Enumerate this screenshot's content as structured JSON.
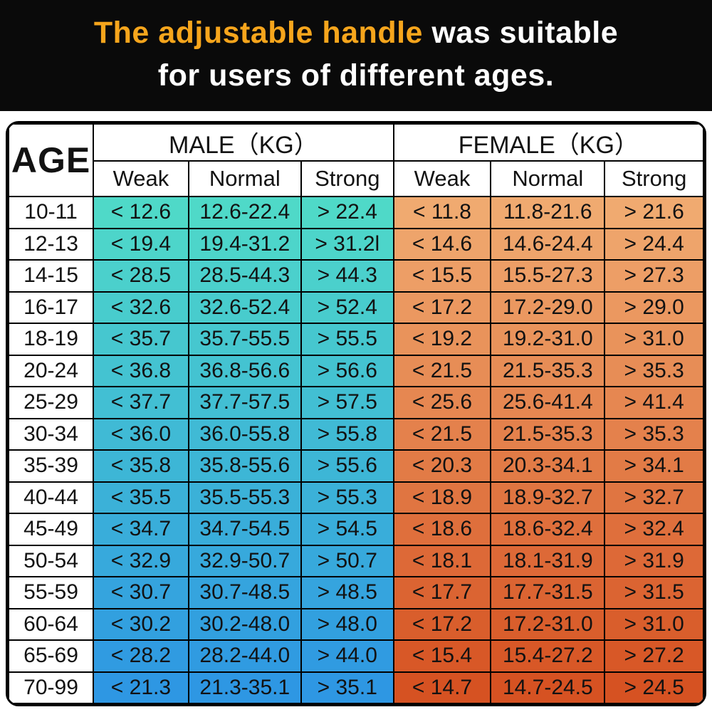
{
  "banner": {
    "line1_highlight": "The adjustable handle",
    "line1_rest": " was suitable",
    "line2": "for users of different ages.",
    "background_color": "#0a0a0a",
    "highlight_color": "#F6A51C",
    "text_color": "#ffffff"
  },
  "table": {
    "age_header": "AGE",
    "groups": [
      {
        "label": "MALE（KG）",
        "columns": [
          "Weak",
          "Normal",
          "Strong"
        ]
      },
      {
        "label": "FEMALE（KG）",
        "columns": [
          "Weak",
          "Normal",
          "Strong"
        ]
      }
    ],
    "male_gradient_top": "#4FD9C8",
    "male_gradient_bottom": "#2E97E3",
    "female_gradient_top": "#F0AA70",
    "female_gradient_bottom": "#D65222",
    "border_color": "#000000",
    "rows": [
      {
        "age": "10-11",
        "male": [
          "< 12.6",
          "12.6-22.4",
          "> 22.4"
        ],
        "female": [
          "< 11.8",
          "11.8-21.6",
          "> 21.6"
        ]
      },
      {
        "age": "12-13",
        "male": [
          "< 19.4",
          "19.4-31.2",
          "> 31.2l"
        ],
        "female": [
          "< 14.6",
          "14.6-24.4",
          "> 24.4"
        ]
      },
      {
        "age": "14-15",
        "male": [
          "< 28.5",
          "28.5-44.3",
          "> 44.3"
        ],
        "female": [
          "< 15.5",
          "15.5-27.3",
          "> 27.3"
        ]
      },
      {
        "age": "16-17",
        "male": [
          "< 32.6",
          "32.6-52.4",
          "> 52.4"
        ],
        "female": [
          "< 17.2",
          "17.2-29.0",
          "> 29.0"
        ]
      },
      {
        "age": "18-19",
        "male": [
          "< 35.7",
          "35.7-55.5",
          "> 55.5"
        ],
        "female": [
          "< 19.2",
          "19.2-31.0",
          "> 31.0"
        ]
      },
      {
        "age": "20-24",
        "male": [
          "< 36.8",
          "36.8-56.6",
          "> 56.6"
        ],
        "female": [
          "< 21.5",
          "21.5-35.3",
          "> 35.3"
        ]
      },
      {
        "age": "25-29",
        "male": [
          "< 37.7",
          "37.7-57.5",
          "> 57.5"
        ],
        "female": [
          "< 25.6",
          "25.6-41.4",
          "> 41.4"
        ]
      },
      {
        "age": "30-34",
        "male": [
          "< 36.0",
          "36.0-55.8",
          "> 55.8"
        ],
        "female": [
          "< 21.5",
          "21.5-35.3",
          "> 35.3"
        ]
      },
      {
        "age": "35-39",
        "male": [
          "< 35.8",
          "35.8-55.6",
          "> 55.6"
        ],
        "female": [
          "< 20.3",
          "20.3-34.1",
          "> 34.1"
        ]
      },
      {
        "age": "40-44",
        "male": [
          "< 35.5",
          "35.5-55.3",
          "> 55.3"
        ],
        "female": [
          "< 18.9",
          "18.9-32.7",
          "> 32.7"
        ]
      },
      {
        "age": "45-49",
        "male": [
          "< 34.7",
          "34.7-54.5",
          "> 54.5"
        ],
        "female": [
          "< 18.6",
          "18.6-32.4",
          "> 32.4"
        ]
      },
      {
        "age": "50-54",
        "male": [
          "< 32.9",
          "32.9-50.7",
          "> 50.7"
        ],
        "female": [
          "< 18.1",
          "18.1-31.9",
          "> 31.9"
        ]
      },
      {
        "age": "55-59",
        "male": [
          "< 30.7",
          "30.7-48.5",
          "> 48.5"
        ],
        "female": [
          "< 17.7",
          "17.7-31.5",
          "> 31.5"
        ]
      },
      {
        "age": "60-64",
        "male": [
          "< 30.2",
          "30.2-48.0",
          "> 48.0"
        ],
        "female": [
          "< 17.2",
          "17.2-31.0",
          "> 31.0"
        ]
      },
      {
        "age": "65-69",
        "male": [
          "< 28.2",
          "28.2-44.0",
          "> 44.0"
        ],
        "female": [
          "< 15.4",
          "15.4-27.2",
          "> 27.2"
        ]
      },
      {
        "age": "70-99",
        "male": [
          "< 21.3",
          "21.3-35.1",
          "> 35.1"
        ],
        "female": [
          "< 14.7",
          "14.7-24.5",
          "> 24.5"
        ]
      }
    ]
  },
  "chart_data": {
    "type": "table",
    "title": "The adjustable handle was suitable for users of different ages.",
    "columns": [
      "AGE",
      "MALE Weak (KG)",
      "MALE Normal (KG)",
      "MALE Strong (KG)",
      "FEMALE Weak (KG)",
      "FEMALE Normal (KG)",
      "FEMALE Strong (KG)"
    ],
    "rows": [
      [
        "10-11",
        "<12.6",
        "12.6-22.4",
        ">22.4",
        "<11.8",
        "11.8-21.6",
        ">21.6"
      ],
      [
        "12-13",
        "<19.4",
        "19.4-31.2",
        ">31.2l",
        "<14.6",
        "14.6-24.4",
        ">24.4"
      ],
      [
        "14-15",
        "<28.5",
        "28.5-44.3",
        ">44.3",
        "<15.5",
        "15.5-27.3",
        ">27.3"
      ],
      [
        "16-17",
        "<32.6",
        "32.6-52.4",
        ">52.4",
        "<17.2",
        "17.2-29.0",
        ">29.0"
      ],
      [
        "18-19",
        "<35.7",
        "35.7-55.5",
        ">55.5",
        "<19.2",
        "19.2-31.0",
        ">31.0"
      ],
      [
        "20-24",
        "<36.8",
        "36.8-56.6",
        ">56.6",
        "<21.5",
        "21.5-35.3",
        ">35.3"
      ],
      [
        "25-29",
        "<37.7",
        "37.7-57.5",
        ">57.5",
        "<25.6",
        "25.6-41.4",
        ">41.4"
      ],
      [
        "30-34",
        "<36.0",
        "36.0-55.8",
        ">55.8",
        "<21.5",
        "21.5-35.3",
        ">35.3"
      ],
      [
        "35-39",
        "<35.8",
        "35.8-55.6",
        ">55.6",
        "<20.3",
        "20.3-34.1",
        ">34.1"
      ],
      [
        "40-44",
        "<35.5",
        "35.5-55.3",
        ">55.3",
        "<18.9",
        "18.9-32.7",
        ">32.7"
      ],
      [
        "45-49",
        "<34.7",
        "34.7-54.5",
        ">54.5",
        "<18.6",
        "18.6-32.4",
        ">32.4"
      ],
      [
        "50-54",
        "<32.9",
        "32.9-50.7",
        ">50.7",
        "<18.1",
        "18.1-31.9",
        ">31.9"
      ],
      [
        "55-59",
        "<30.7",
        "30.7-48.5",
        ">48.5",
        "<17.7",
        "17.7-31.5",
        ">31.5"
      ],
      [
        "60-64",
        "<30.2",
        "30.2-48.0",
        ">48.0",
        "<17.2",
        "17.2-31.0",
        ">31.0"
      ],
      [
        "65-69",
        "<28.2",
        "28.2-44.0",
        ">44.0",
        "<15.4",
        "15.4-27.2",
        ">27.2"
      ],
      [
        "70-99",
        "<21.3",
        "21.3-35.1",
        ">35.1",
        "<14.7",
        "14.7-24.5",
        ">24.5"
      ]
    ],
    "layout_hints": {
      "male_block_gradient": [
        "#4FD9C8",
        "#2E97E3"
      ],
      "female_block_gradient": [
        "#F0AA70",
        "#D65222"
      ],
      "grid": true
    }
  }
}
